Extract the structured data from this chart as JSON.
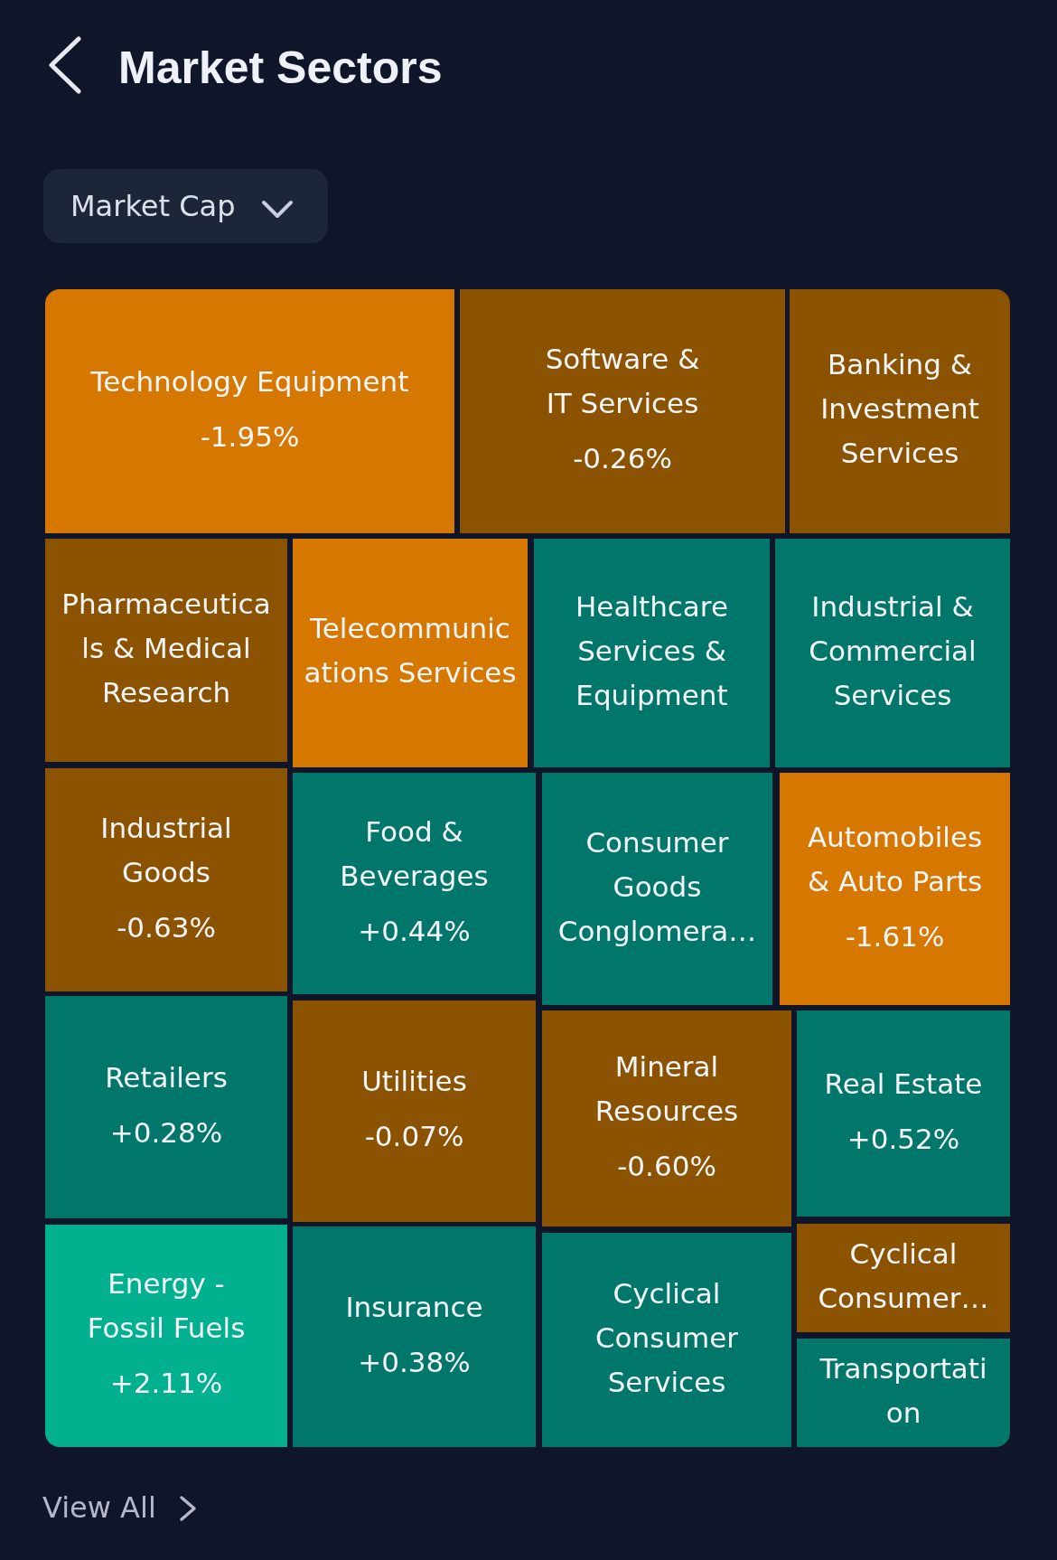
{
  "chart_data": {
    "type": "other",
    "title": "Market Sectors",
    "subtitle": "Market Cap",
    "categories": [
      "Technology Equipment",
      "Software & IT Services",
      "Banking & Investment Services",
      "Pharmaceuticals & Medical Research",
      "Telecommunications Services",
      "Healthcare Services & Equipment",
      "Industrial & Commercial Services",
      "Industrial Goods",
      "Food & Beverages",
      "Consumer Goods Conglomera…",
      "Automobiles & Auto Parts",
      "Retailers",
      "Utilities",
      "Mineral Resources",
      "Real Estate",
      "Energy - Fossil Fuels",
      "Insurance",
      "Cyclical Consumer Services",
      "Cyclical Consumer…",
      "Transportation"
    ],
    "values": [
      -1.95,
      -0.26,
      null,
      null,
      null,
      null,
      null,
      -0.63,
      0.44,
      null,
      -1.61,
      0.28,
      -0.07,
      -0.6,
      0.52,
      2.11,
      0.38,
      null,
      null,
      null
    ],
    "value_labels": [
      "-1.95%",
      "-0.26%",
      null,
      null,
      null,
      null,
      null,
      "-0.63%",
      "+0.44%",
      null,
      "-1.61%",
      "+0.28%",
      "-0.07%",
      "-0.60%",
      "+0.52%",
      "+2.11%",
      "+0.38%",
      null,
      null,
      null
    ],
    "colors": [
      "#d67800",
      "#8b5300",
      "#8b5300",
      "#8b5300",
      "#d67800",
      "#00776a",
      "#00776a",
      "#8b5300",
      "#00776a",
      "#00776a",
      "#d67800",
      "#00776a",
      "#8b5300",
      "#8b5300",
      "#00776a",
      "#00b08f",
      "#00776a",
      "#00776a",
      "#8b5300",
      "#00776a"
    ],
    "annotations": [
      "View All"
    ]
  }
}
